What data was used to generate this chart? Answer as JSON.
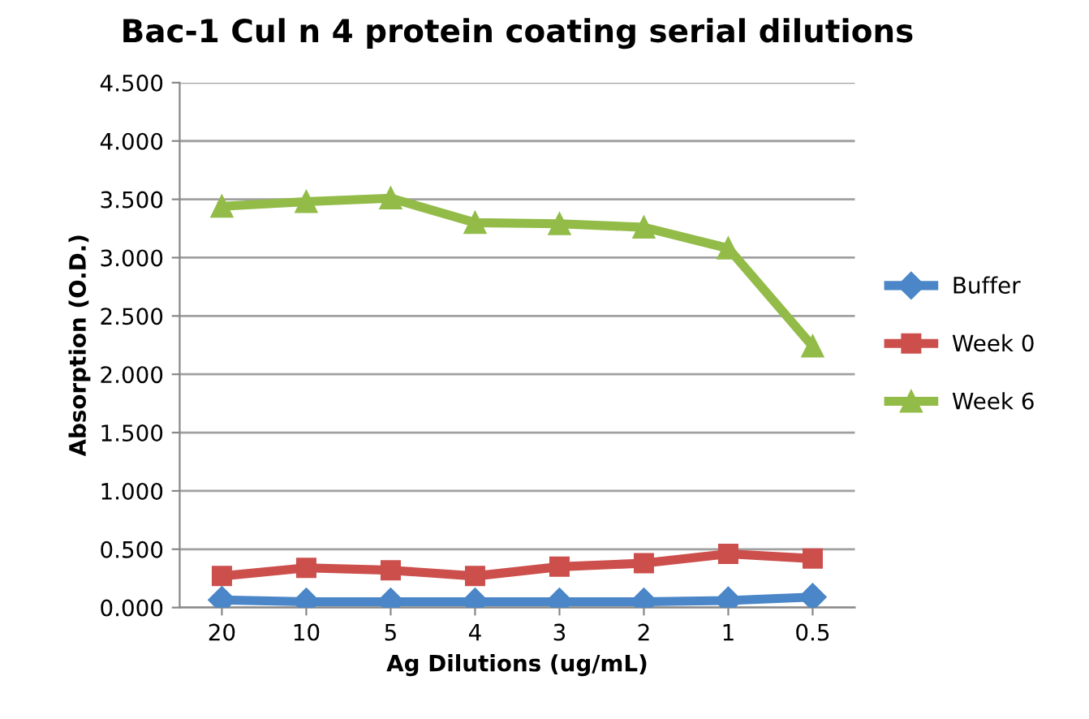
{
  "chart_data": {
    "type": "line",
    "title": "Bac-1 Cul n 4 protein coating serial dilutions",
    "xlabel": "Ag Dilutions (ug/mL)",
    "ylabel": "Absorption (O.D.)",
    "categories": [
      "20",
      "10",
      "5",
      "4",
      "3",
      "2",
      "1",
      "0.5"
    ],
    "series": [
      {
        "name": "Buffer",
        "color": "#4a86c8",
        "marker": "diamond",
        "values": [
          0.065,
          0.05,
          0.05,
          0.05,
          0.05,
          0.05,
          0.06,
          0.09
        ]
      },
      {
        "name": "Week 0",
        "color": "#cc4f4c",
        "marker": "square",
        "values": [
          0.27,
          0.34,
          0.32,
          0.27,
          0.35,
          0.38,
          0.46,
          0.42
        ]
      },
      {
        "name": "Week 6",
        "color": "#92bb48",
        "marker": "triangle",
        "values": [
          3.44,
          3.48,
          3.51,
          3.3,
          3.29,
          3.26,
          3.08,
          2.24
        ]
      }
    ],
    "ylim": [
      0,
      4.5
    ],
    "yticks": [
      {
        "value": 0,
        "label": "0.000"
      },
      {
        "value": 0.5,
        "label": "0.500"
      },
      {
        "value": 1,
        "label": "1.000"
      },
      {
        "value": 1.5,
        "label": "1.500"
      },
      {
        "value": 2,
        "label": "2.000"
      },
      {
        "value": 2.5,
        "label": "2.500"
      },
      {
        "value": 3,
        "label": "3.000"
      },
      {
        "value": 3.5,
        "label": "3.500"
      },
      {
        "value": 4,
        "label": "4.000"
      },
      {
        "value": 4.5,
        "label": "4.500"
      }
    ],
    "grid": "y",
    "legend": "right",
    "line_style": "solid"
  }
}
